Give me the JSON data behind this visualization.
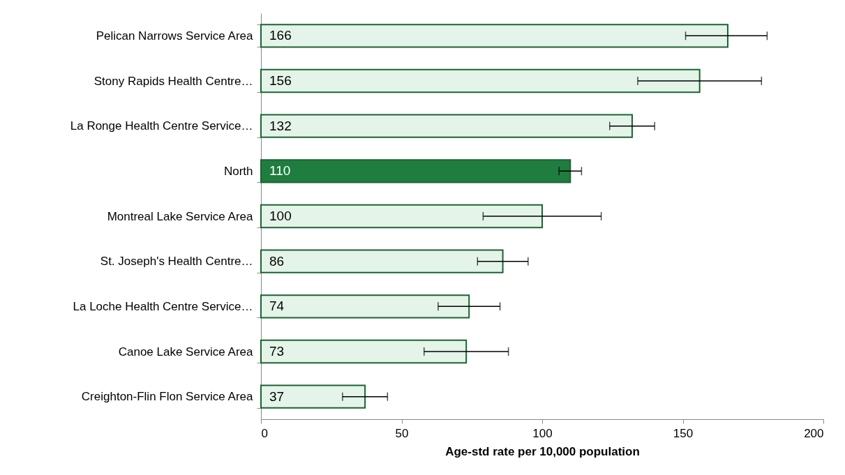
{
  "chart_data": {
    "type": "bar",
    "orientation": "horizontal",
    "xlabel": "Age-std rate per 10,000 population",
    "categories": [
      "Pelican Narrows Service Area",
      "Stony Rapids Health Centre…",
      "La Ronge Health Centre Service…",
      "North",
      "Montreal Lake Service Area",
      "St. Joseph's Health Centre…",
      "La Loche Health Centre Service…",
      "Canoe Lake Service Area",
      "Creighton-Flin Flon Service Area"
    ],
    "values": [
      166,
      156,
      132,
      110,
      100,
      86,
      74,
      73,
      37
    ],
    "colors": [
      "#e4f4e9",
      "#e4f4e9",
      "#e4f4e9",
      "#1f7d3f",
      "#e4f4e9",
      "#e4f4e9",
      "#e4f4e9",
      "#e4f4e9",
      "#e4f4e9"
    ],
    "errors": [
      [
        151,
        180
      ],
      [
        134,
        178
      ],
      [
        124,
        140
      ],
      [
        106,
        114
      ],
      [
        79,
        121
      ],
      [
        77,
        95
      ],
      [
        63,
        85
      ],
      [
        58,
        88
      ],
      [
        29,
        45
      ]
    ],
    "data_labels": true,
    "xlim": [
      0,
      200
    ],
    "xticks": [
      0,
      50,
      100,
      150,
      200
    ],
    "grid": false
  }
}
